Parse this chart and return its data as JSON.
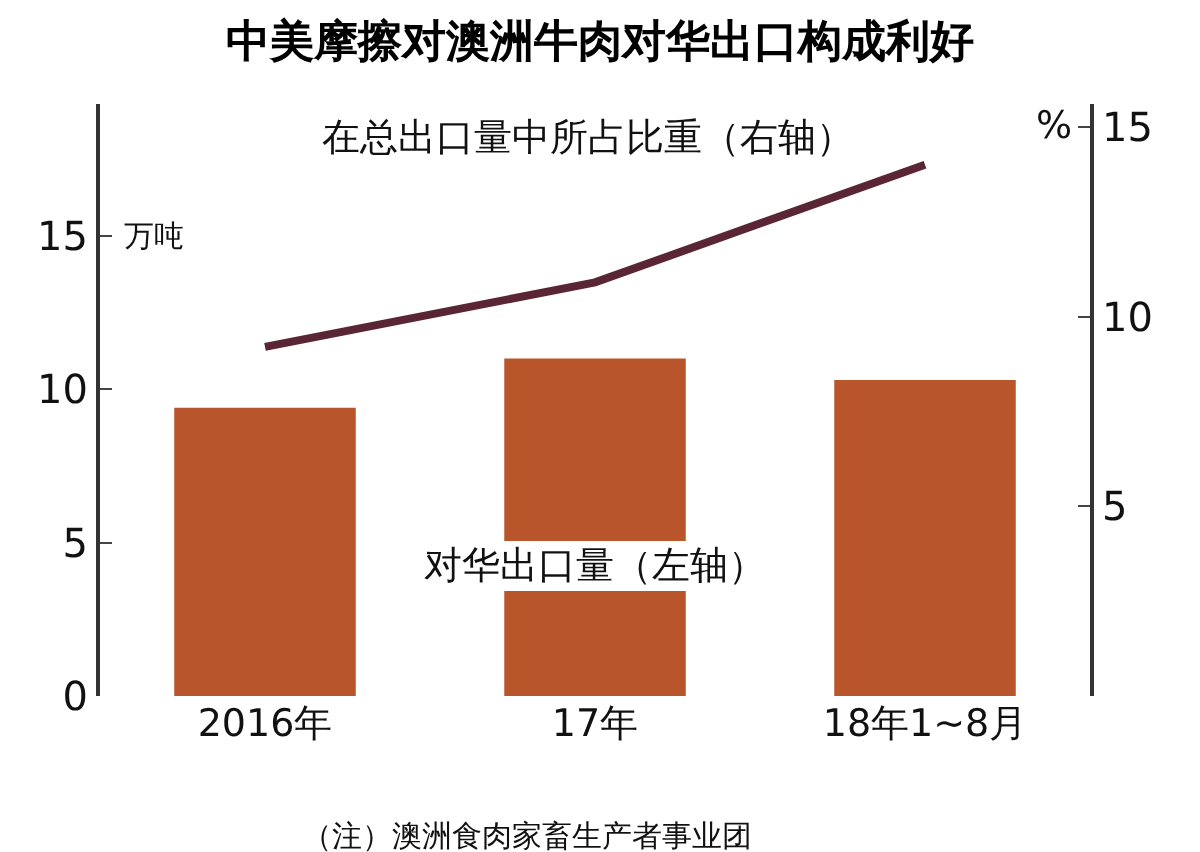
{
  "chart_data": {
    "type": "bar",
    "title": "中美摩擦对澳洲牛肉对华出口构成利好",
    "ylabel": "万吨",
    "y2label": "%",
    "categories": [
      "2016年",
      "17年",
      "18年1~8月"
    ],
    "series": [
      {
        "color": "#b9552b",
        "values": [
          9.4,
          11.0,
          10.3
        ]
      },
      {
        "type": "line",
        "axis": "y2",
        "color": "#5a2636",
        "values": [
          9.2,
          10.9,
          14.0
        ]
      }
    ],
    "ylim": [
      0,
      19.3
    ],
    "yticks": [
      0,
      5,
      10,
      15
    ],
    "y2lim": [
      0,
      15.6
    ],
    "y2ticks": [
      5,
      10,
      15
    ],
    "grid": false,
    "legend": false,
    "marker": "none",
    "line_style": "solid",
    "annotations": [
      "在总出口量中所占比重（右轴）",
      "对华出口量（左轴）",
      "（注）澳洲食肉家畜生产者事业团"
    ]
  }
}
